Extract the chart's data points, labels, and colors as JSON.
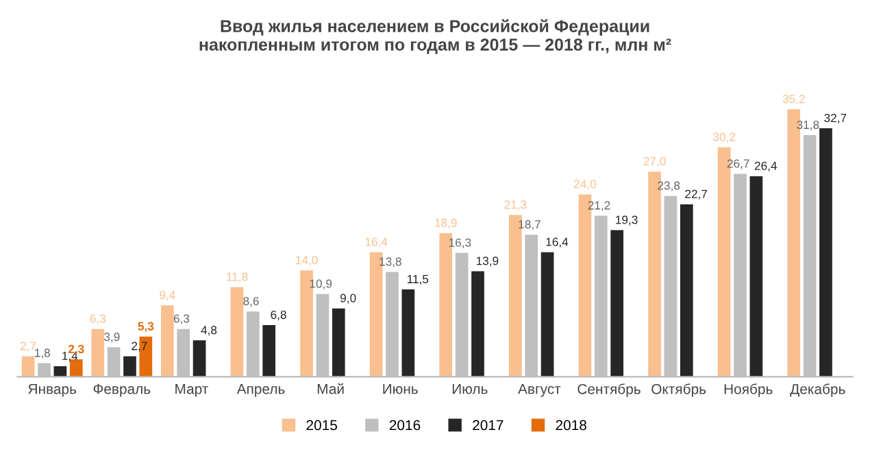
{
  "chart_data": {
    "type": "bar",
    "title": "Ввод жилья населением в Российской Федерации\nнакопленным итогом по годам в 2015 — 2018 гг., млн м²",
    "categories": [
      "Январь",
      "Февраль",
      "Март",
      "Апрель",
      "Май",
      "Июнь",
      "Июль",
      "Август",
      "Сентябрь",
      "Октябрь",
      "Ноябрь",
      "Декабрь"
    ],
    "series": [
      {
        "name": "2015",
        "color": "#f9bf8f",
        "values": [
          2.7,
          6.3,
          9.4,
          11.8,
          14.0,
          16.4,
          18.9,
          21.3,
          24.0,
          27.0,
          30.2,
          35.2
        ],
        "value_labels": [
          "2,7",
          "6,3",
          "9,4",
          "11,8",
          "14,0",
          "16,4",
          "18,9",
          "21,3",
          "24,0",
          "27,0",
          "30,2",
          "35,2"
        ]
      },
      {
        "name": "2016",
        "color": "#bfbfbf",
        "values": [
          1.8,
          3.9,
          6.3,
          8.6,
          10.9,
          13.8,
          16.3,
          18.7,
          21.2,
          23.8,
          26.7,
          31.8
        ],
        "value_labels": [
          "1,8",
          "3,9",
          "6,3",
          "8,6",
          "10,9",
          "13,8",
          "16,3",
          "18,7",
          "21,2",
          "23,8",
          "26,7",
          "31,8"
        ]
      },
      {
        "name": "2017",
        "color": "#262626",
        "values": [
          1.4,
          2.7,
          4.8,
          6.8,
          9.0,
          11.5,
          13.9,
          16.4,
          19.3,
          22.7,
          26.4,
          32.7
        ],
        "value_labels": [
          "1,4",
          "2,7",
          "4,8",
          "6,8",
          "9,0",
          "11,5",
          "13,9",
          "16,4",
          "19,3",
          "22,7",
          "26,4",
          "32,7"
        ]
      },
      {
        "name": "2018",
        "color": "#e46c0a",
        "values": [
          2.3,
          5.3,
          null,
          null,
          null,
          null,
          null,
          null,
          null,
          null,
          null,
          null
        ],
        "value_labels": [
          "2,3",
          "5,3",
          null,
          null,
          null,
          null,
          null,
          null,
          null,
          null,
          null,
          null
        ]
      }
    ],
    "legend": "bottom",
    "grid": false,
    "data_labels": false
  }
}
